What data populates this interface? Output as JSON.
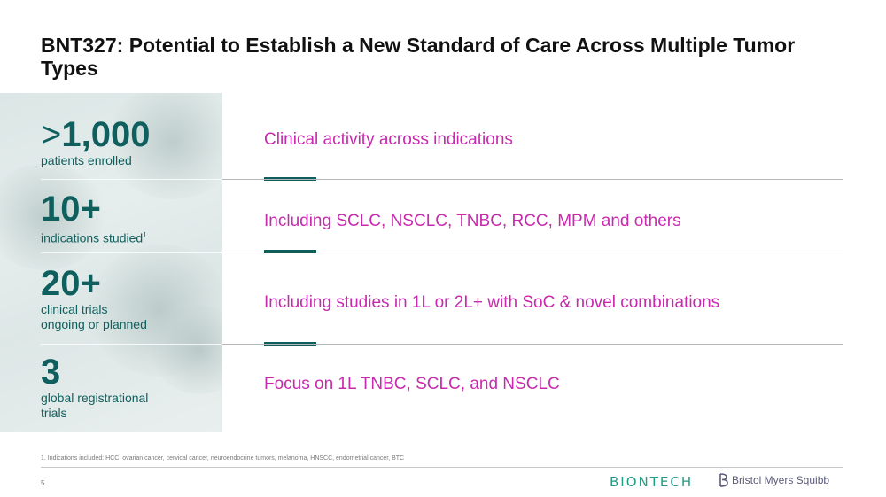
{
  "header": {
    "title": "BNT327: Potential to Establish a New Standard of Care Across Multiple Tumor Types"
  },
  "stats": [
    {
      "prefix": ">",
      "number": "1,000",
      "label": "patients enrolled",
      "label_line2": ""
    },
    {
      "prefix": "",
      "number": "10+",
      "label": "indications studied",
      "footnote_mark": "1",
      "label_line2": ""
    },
    {
      "prefix": "",
      "number": "20+",
      "label": "clinical trials",
      "label_line2": "ongoing or planned"
    },
    {
      "prefix": "",
      "number": "3",
      "label": "global registrational",
      "label_line2": "trials"
    }
  ],
  "rows": [
    {
      "text": "Clinical activity across indications"
    },
    {
      "text": "Including SCLC, NSCLC, TNBC, RCC, MPM and others"
    },
    {
      "text": "Including studies in 1L or 2L+ with SoC & novel combinations"
    },
    {
      "text": "Focus on 1L TNBC, SCLC, and NSCLC"
    }
  ],
  "footer": {
    "footnote": "1. Indications included: HCC, ovarian cancer, cervical cancer, neuroendocrine tumors, melanoma, HNSCC, endometrial cancer, BTC",
    "page_number": "5",
    "logo_biontech": "BIONTECH",
    "logo_bms": "Bristol Myers Squibb"
  },
  "colors": {
    "teal": "#0f5f5e",
    "magenta": "#c82aae",
    "biontech_green": "#1f9c83"
  }
}
